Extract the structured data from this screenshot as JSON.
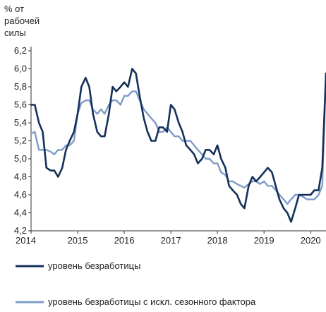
{
  "chart_data": {
    "type": "line",
    "ylabel_lines": [
      "% от",
      "рабочей",
      "силы"
    ],
    "ylim": [
      4.2,
      6.2
    ],
    "yticks": [
      4.2,
      4.4,
      4.6,
      4.8,
      5.0,
      5.2,
      5.4,
      5.6,
      5.8,
      6.0,
      6.2
    ],
    "ytick_labels": [
      "4,2",
      "4,4",
      "4,6",
      "4,8",
      "5,0",
      "5,2",
      "5,4",
      "5,6",
      "5,8",
      "6,0",
      "6,2"
    ],
    "xlim": [
      2014.0,
      2020.33
    ],
    "xticks": [
      2014,
      2015,
      2016,
      2017,
      2018,
      2019,
      2020
    ],
    "xtick_labels": [
      "2014",
      "2015",
      "2016",
      "2017",
      "2018",
      "2019",
      "2020"
    ],
    "grid": false,
    "legend_position": "bottom",
    "series": [
      {
        "name": "уровень безработицы",
        "color": "#14305a",
        "x": [
          2014.0,
          2014.08,
          2014.17,
          2014.25,
          2014.33,
          2014.42,
          2014.5,
          2014.58,
          2014.67,
          2014.75,
          2014.83,
          2014.92,
          2015.0,
          2015.08,
          2015.17,
          2015.25,
          2015.33,
          2015.42,
          2015.5,
          2015.58,
          2015.67,
          2015.75,
          2015.83,
          2015.92,
          2016.0,
          2016.08,
          2016.17,
          2016.25,
          2016.33,
          2016.42,
          2016.5,
          2016.58,
          2016.67,
          2016.75,
          2016.83,
          2016.92,
          2017.0,
          2017.08,
          2017.17,
          2017.25,
          2017.33,
          2017.42,
          2017.5,
          2017.58,
          2017.67,
          2017.75,
          2017.83,
          2017.92,
          2018.0,
          2018.08,
          2018.17,
          2018.25,
          2018.33,
          2018.42,
          2018.5,
          2018.58,
          2018.67,
          2018.75,
          2018.83,
          2018.92,
          2019.0,
          2019.08,
          2019.17,
          2019.25,
          2019.33,
          2019.42,
          2019.5,
          2019.58,
          2019.67,
          2019.75,
          2019.83,
          2019.92,
          2020.0,
          2020.08,
          2020.17,
          2020.25,
          2020.33
        ],
        "values": [
          5.6,
          5.6,
          5.4,
          5.3,
          4.9,
          4.87,
          4.87,
          4.8,
          4.9,
          5.1,
          5.2,
          5.3,
          5.5,
          5.8,
          5.9,
          5.8,
          5.5,
          5.3,
          5.25,
          5.25,
          5.5,
          5.8,
          5.75,
          5.8,
          5.85,
          5.8,
          6.0,
          5.95,
          5.7,
          5.45,
          5.3,
          5.2,
          5.2,
          5.35,
          5.35,
          5.3,
          5.6,
          5.55,
          5.4,
          5.3,
          5.15,
          5.1,
          5.05,
          4.95,
          5.0,
          5.1,
          5.1,
          5.05,
          5.15,
          5.0,
          4.9,
          4.7,
          4.65,
          4.6,
          4.5,
          4.45,
          4.7,
          4.8,
          4.75,
          4.8,
          4.85,
          4.9,
          4.85,
          4.7,
          4.55,
          4.45,
          4.4,
          4.3,
          4.45,
          4.6,
          4.6,
          4.6,
          4.6,
          4.65,
          4.65,
          4.9,
          5.95
        ]
      },
      {
        "name": "уровень безработицы с искл. сезонного фактора",
        "color": "#7f9cc8",
        "x": [
          2014.0,
          2014.08,
          2014.17,
          2014.25,
          2014.33,
          2014.42,
          2014.5,
          2014.58,
          2014.67,
          2014.75,
          2014.83,
          2014.92,
          2015.0,
          2015.08,
          2015.17,
          2015.25,
          2015.33,
          2015.42,
          2015.5,
          2015.58,
          2015.67,
          2015.75,
          2015.83,
          2015.92,
          2016.0,
          2016.08,
          2016.17,
          2016.25,
          2016.33,
          2016.42,
          2016.5,
          2016.58,
          2016.67,
          2016.75,
          2016.83,
          2016.92,
          2017.0,
          2017.08,
          2017.17,
          2017.25,
          2017.33,
          2017.42,
          2017.5,
          2017.58,
          2017.67,
          2017.75,
          2017.83,
          2017.92,
          2018.0,
          2018.08,
          2018.17,
          2018.25,
          2018.33,
          2018.42,
          2018.5,
          2018.58,
          2018.67,
          2018.75,
          2018.83,
          2018.92,
          2019.0,
          2019.08,
          2019.17,
          2019.25,
          2019.33,
          2019.42,
          2019.5,
          2019.58,
          2019.67,
          2019.75,
          2019.83,
          2019.92,
          2020.0,
          2020.08,
          2020.17,
          2020.25,
          2020.33
        ],
        "values": [
          5.28,
          5.3,
          5.1,
          5.1,
          5.1,
          5.08,
          5.05,
          5.1,
          5.1,
          5.15,
          5.15,
          5.2,
          5.5,
          5.62,
          5.65,
          5.65,
          5.55,
          5.5,
          5.55,
          5.5,
          5.6,
          5.65,
          5.65,
          5.6,
          5.7,
          5.7,
          5.75,
          5.75,
          5.65,
          5.55,
          5.5,
          5.45,
          5.4,
          5.3,
          5.3,
          5.35,
          5.3,
          5.25,
          5.25,
          5.2,
          5.2,
          5.2,
          5.15,
          5.1,
          5.05,
          5.0,
          5.0,
          4.95,
          4.95,
          4.85,
          4.82,
          4.75,
          4.75,
          4.72,
          4.7,
          4.68,
          4.72,
          4.75,
          4.75,
          4.72,
          4.75,
          4.7,
          4.7,
          4.65,
          4.6,
          4.55,
          4.5,
          4.55,
          4.6,
          4.6,
          4.58,
          4.55,
          4.55,
          4.55,
          4.6,
          4.7,
          5.95
        ]
      }
    ]
  }
}
